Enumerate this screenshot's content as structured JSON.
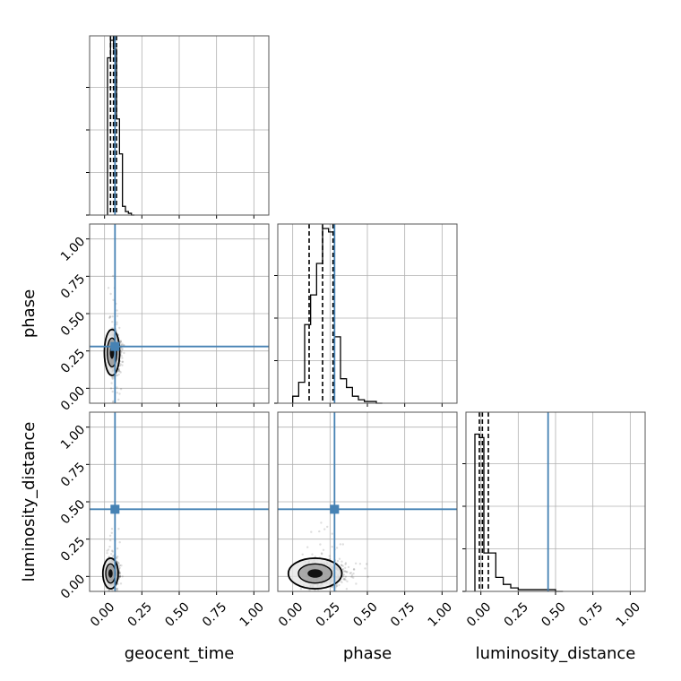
{
  "chart_data": {
    "type": "corner",
    "parameters": [
      "geocent_time",
      "phase",
      "luminosity_distance"
    ],
    "xlim": [
      -0.1,
      1.1
    ],
    "ylim": [
      -0.1,
      1.1
    ],
    "ticks": [
      0.0,
      0.25,
      0.5,
      0.75,
      1.0
    ],
    "tick_labels": [
      "0.00",
      "0.25",
      "0.50",
      "0.75",
      "1.00"
    ],
    "grid": true,
    "colors": {
      "truth": "#4682b4",
      "hist": "#000000",
      "quantile": "#000000",
      "samples": "#000000"
    },
    "truths": {
      "geocent_time": 0.07,
      "phase": 0.28,
      "luminosity_distance": 0.45
    },
    "quantiles": {
      "geocent_time": [
        0.04,
        0.06,
        0.08
      ],
      "phase": [
        0.11,
        0.2,
        0.27
      ],
      "luminosity_distance": [
        -0.01,
        0.01,
        0.05
      ]
    },
    "histograms": {
      "geocent_time": {
        "bin_edges": [
          0.02,
          0.04,
          0.06,
          0.08,
          0.1,
          0.12,
          0.14,
          0.16,
          0.18,
          0.2
        ],
        "density": [
          0.9,
          1.0,
          0.95,
          0.55,
          0.35,
          0.05,
          0.02,
          0.01,
          0.0
        ]
      },
      "phase": {
        "bin_edges": [
          0.0,
          0.04,
          0.08,
          0.12,
          0.16,
          0.2,
          0.24,
          0.28,
          0.32,
          0.36,
          0.4,
          0.44,
          0.48,
          0.52,
          0.56,
          0.6
        ],
        "density": [
          0.04,
          0.12,
          0.45,
          0.62,
          0.8,
          1.0,
          0.98,
          0.38,
          0.14,
          0.09,
          0.04,
          0.02,
          0.01,
          0.01,
          0.0
        ]
      },
      "luminosity_distance": {
        "bin_edges": [
          -0.04,
          -0.01,
          0.02,
          0.05,
          0.1,
          0.15,
          0.2,
          0.25,
          0.3,
          0.4,
          0.5,
          0.55
        ],
        "density": [
          0.9,
          0.88,
          0.22,
          0.22,
          0.08,
          0.04,
          0.02,
          0.01,
          0.01,
          0.01,
          0.0
        ]
      }
    },
    "pairs": [
      {
        "x": "geocent_time",
        "y": "phase",
        "center": [
          0.05,
          0.24
        ],
        "spread": [
          0.02,
          0.06
        ]
      },
      {
        "x": "geocent_time",
        "y": "luminosity_distance",
        "center": [
          0.04,
          0.02
        ],
        "spread": [
          0.02,
          0.04
        ]
      },
      {
        "x": "phase",
        "y": "luminosity_distance",
        "center": [
          0.15,
          0.02
        ],
        "spread": [
          0.07,
          0.04
        ]
      }
    ]
  }
}
